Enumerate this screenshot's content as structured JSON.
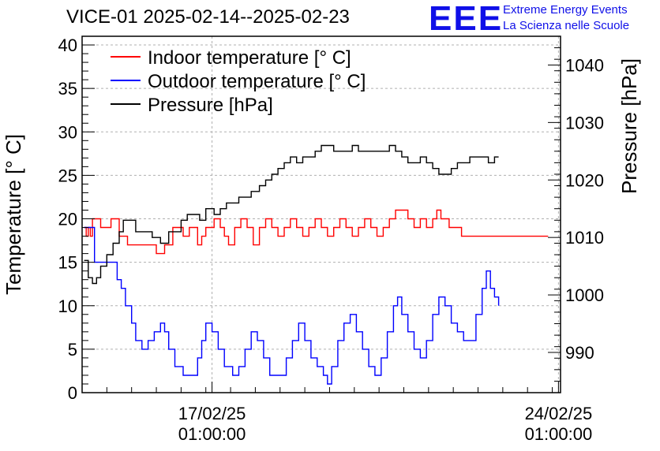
{
  "header": {
    "title": "VICE-01 2025-02-14--2025-02-23",
    "logo_text": "EEE",
    "logo_line1": "Extreme Energy Events",
    "logo_line2": "La Scienza nelle Scuole"
  },
  "chart_data": {
    "type": "line",
    "title": "VICE-01 2025-02-14--2025-02-23",
    "ylabel": "Temperature [° C]",
    "y2label": "Pressure [hPa]",
    "xlabel": "",
    "ylim": [
      0,
      41
    ],
    "y2lim": [
      983,
      1045
    ],
    "xlim": [
      "2025-02-14T10:00",
      "2025-02-24T02:00"
    ],
    "y_ticks": [
      0,
      5,
      10,
      15,
      20,
      25,
      30,
      35,
      40
    ],
    "y2_ticks": [
      990,
      1000,
      1010,
      1020,
      1030,
      1040
    ],
    "x_ticks": [
      {
        "x": "2025-02-17T01:00",
        "label_date": "17/02/25",
        "label_time": "01:00:00"
      },
      {
        "x": "2025-02-24T01:00",
        "label_date": "24/02/25",
        "label_time": "01:00:00"
      }
    ],
    "grid": true,
    "legend_position": "top-left",
    "series": [
      {
        "name": "Indoor temperature [° C]",
        "axis": "left",
        "color": "#ff0000",
        "points": [
          [
            "2025-02-14T11:00",
            19
          ],
          [
            "2025-02-14T12:00",
            18
          ],
          [
            "2025-02-14T13:00",
            19
          ],
          [
            "2025-02-14T14:00",
            18
          ],
          [
            "2025-02-14T15:00",
            20
          ],
          [
            "2025-02-14T19:00",
            19
          ],
          [
            "2025-02-15T00:00",
            20
          ],
          [
            "2025-02-15T04:00",
            18
          ],
          [
            "2025-02-15T08:00",
            17
          ],
          [
            "2025-02-15T18:00",
            17
          ],
          [
            "2025-02-15T22:00",
            16
          ],
          [
            "2025-02-16T02:00",
            17
          ],
          [
            "2025-02-16T06:00",
            19
          ],
          [
            "2025-02-16T11:00",
            18
          ],
          [
            "2025-02-16T14:00",
            19
          ],
          [
            "2025-02-16T18:00",
            17
          ],
          [
            "2025-02-16T20:00",
            18
          ],
          [
            "2025-02-16T22:00",
            19
          ],
          [
            "2025-02-17T02:00",
            20
          ],
          [
            "2025-02-17T05:00",
            19
          ],
          [
            "2025-02-17T07:00",
            18
          ],
          [
            "2025-02-17T09:00",
            17
          ],
          [
            "2025-02-17T12:00",
            19
          ],
          [
            "2025-02-17T15:00",
            20
          ],
          [
            "2025-02-17T18:00",
            19
          ],
          [
            "2025-02-17T21:00",
            17
          ],
          [
            "2025-02-18T00:00",
            19
          ],
          [
            "2025-02-18T03:00",
            20
          ],
          [
            "2025-02-18T06:00",
            19
          ],
          [
            "2025-02-18T09:00",
            18
          ],
          [
            "2025-02-18T12:00",
            19
          ],
          [
            "2025-02-18T15:00",
            20
          ],
          [
            "2025-02-18T18:00",
            19
          ],
          [
            "2025-02-18T21:00",
            18
          ],
          [
            "2025-02-19T00:00",
            19
          ],
          [
            "2025-02-19T03:00",
            20
          ],
          [
            "2025-02-19T06:00",
            19
          ],
          [
            "2025-02-19T09:00",
            18
          ],
          [
            "2025-02-19T12:00",
            19
          ],
          [
            "2025-02-19T15:00",
            20
          ],
          [
            "2025-02-19T18:00",
            19
          ],
          [
            "2025-02-19T21:00",
            18
          ],
          [
            "2025-02-20T00:00",
            19
          ],
          [
            "2025-02-20T03:00",
            20
          ],
          [
            "2025-02-20T06:00",
            19
          ],
          [
            "2025-02-20T09:00",
            18
          ],
          [
            "2025-02-20T12:00",
            19
          ],
          [
            "2025-02-20T15:00",
            20
          ],
          [
            "2025-02-20T18:00",
            21
          ],
          [
            "2025-02-21T00:00",
            20
          ],
          [
            "2025-02-21T03:00",
            19
          ],
          [
            "2025-02-21T06:00",
            20
          ],
          [
            "2025-02-21T09:00",
            19
          ],
          [
            "2025-02-21T12:00",
            20
          ],
          [
            "2025-02-21T14:00",
            21
          ],
          [
            "2025-02-21T16:00",
            20
          ],
          [
            "2025-02-21T20:00",
            19
          ],
          [
            "2025-02-22T02:00",
            18
          ],
          [
            "2025-02-23T20:00",
            18
          ]
        ]
      },
      {
        "name": "Outdoor temperature [° C]",
        "axis": "left",
        "color": "#0000ff",
        "points": [
          [
            "2025-02-14T11:00",
            19
          ],
          [
            "2025-02-14T15:00",
            19
          ],
          [
            "2025-02-14T16:00",
            15
          ],
          [
            "2025-02-15T01:00",
            15
          ],
          [
            "2025-02-15T03:00",
            13
          ],
          [
            "2025-02-15T05:00",
            12
          ],
          [
            "2025-02-15T07:00",
            10
          ],
          [
            "2025-02-15T10:00",
            8
          ],
          [
            "2025-02-15T12:00",
            6
          ],
          [
            "2025-02-15T15:00",
            5
          ],
          [
            "2025-02-15T18:00",
            6
          ],
          [
            "2025-02-15T21:00",
            7
          ],
          [
            "2025-02-16T00:00",
            8
          ],
          [
            "2025-02-16T02:00",
            7
          ],
          [
            "2025-02-16T04:00",
            5
          ],
          [
            "2025-02-16T07:00",
            3
          ],
          [
            "2025-02-16T11:00",
            2
          ],
          [
            "2025-02-16T15:00",
            2
          ],
          [
            "2025-02-16T18:00",
            4
          ],
          [
            "2025-02-16T20:00",
            6
          ],
          [
            "2025-02-16T22:00",
            8
          ],
          [
            "2025-02-17T01:00",
            7
          ],
          [
            "2025-02-17T04:00",
            5
          ],
          [
            "2025-02-17T07:00",
            3
          ],
          [
            "2025-02-17T11:00",
            2
          ],
          [
            "2025-02-17T14:00",
            3
          ],
          [
            "2025-02-17T17:00",
            5
          ],
          [
            "2025-02-17T20:00",
            7
          ],
          [
            "2025-02-17T23:00",
            6
          ],
          [
            "2025-02-18T02:00",
            4
          ],
          [
            "2025-02-18T05:00",
            2
          ],
          [
            "2025-02-18T10:00",
            2
          ],
          [
            "2025-02-18T13:00",
            4
          ],
          [
            "2025-02-18T16:00",
            6
          ],
          [
            "2025-02-18T19:00",
            8
          ],
          [
            "2025-02-18T22:00",
            6
          ],
          [
            "2025-02-19T01:00",
            4
          ],
          [
            "2025-02-19T04:00",
            3
          ],
          [
            "2025-02-19T07:00",
            2
          ],
          [
            "2025-02-19T09:00",
            1
          ],
          [
            "2025-02-19T11:00",
            3
          ],
          [
            "2025-02-19T14:00",
            6
          ],
          [
            "2025-02-19T17:00",
            8
          ],
          [
            "2025-02-19T20:00",
            9
          ],
          [
            "2025-02-19T23:00",
            7
          ],
          [
            "2025-02-20T02:00",
            5
          ],
          [
            "2025-02-20T05:00",
            3
          ],
          [
            "2025-02-20T08:00",
            2
          ],
          [
            "2025-02-20T11:00",
            4
          ],
          [
            "2025-02-20T14:00",
            7
          ],
          [
            "2025-02-20T17:00",
            10
          ],
          [
            "2025-02-20T19:00",
            11
          ],
          [
            "2025-02-20T21:00",
            9
          ],
          [
            "2025-02-21T00:00",
            7
          ],
          [
            "2025-02-21T03:00",
            5
          ],
          [
            "2025-02-21T06:00",
            4
          ],
          [
            "2025-02-21T09:00",
            6
          ],
          [
            "2025-02-21T12:00",
            9
          ],
          [
            "2025-02-21T15:00",
            11
          ],
          [
            "2025-02-21T18:00",
            10
          ],
          [
            "2025-02-21T21:00",
            8
          ],
          [
            "2025-02-22T00:00",
            7
          ],
          [
            "2025-02-22T03:00",
            6
          ],
          [
            "2025-02-22T06:00",
            6
          ],
          [
            "2025-02-22T09:00",
            9
          ],
          [
            "2025-02-22T12:00",
            12
          ],
          [
            "2025-02-22T14:00",
            14
          ],
          [
            "2025-02-22T16:00",
            12
          ],
          [
            "2025-02-22T18:00",
            11
          ],
          [
            "2025-02-22T20:00",
            10
          ]
        ]
      },
      {
        "name": "Pressure [hPa]",
        "axis": "right",
        "color": "#000000",
        "points": [
          [
            "2025-02-14T11:00",
            1006
          ],
          [
            "2025-02-14T13:00",
            1003
          ],
          [
            "2025-02-14T15:00",
            1002
          ],
          [
            "2025-02-14T17:00",
            1003
          ],
          [
            "2025-02-14T19:00",
            1005
          ],
          [
            "2025-02-14T22:00",
            1007
          ],
          [
            "2025-02-15T01:00",
            1009
          ],
          [
            "2025-02-15T04:00",
            1011
          ],
          [
            "2025-02-15T06:00",
            1013
          ],
          [
            "2025-02-15T09:00",
            1013
          ],
          [
            "2025-02-15T12:00",
            1011
          ],
          [
            "2025-02-15T16:00",
            1011
          ],
          [
            "2025-02-15T20:00",
            1010
          ],
          [
            "2025-02-16T00:00",
            1009
          ],
          [
            "2025-02-16T04:00",
            1011
          ],
          [
            "2025-02-16T07:00",
            1011
          ],
          [
            "2025-02-16T10:00",
            1013
          ],
          [
            "2025-02-16T13:00",
            1014
          ],
          [
            "2025-02-16T16:00",
            1014
          ],
          [
            "2025-02-16T19:00",
            1013
          ],
          [
            "2025-02-16T22:00",
            1015
          ],
          [
            "2025-02-17T02:00",
            1014
          ],
          [
            "2025-02-17T05:00",
            1015
          ],
          [
            "2025-02-17T08:00",
            1016
          ],
          [
            "2025-02-17T11:00",
            1016
          ],
          [
            "2025-02-17T14:00",
            1017
          ],
          [
            "2025-02-17T17:00",
            1017
          ],
          [
            "2025-02-17T20:00",
            1018
          ],
          [
            "2025-02-18T00:00",
            1019
          ],
          [
            "2025-02-18T03:00",
            1020
          ],
          [
            "2025-02-18T06:00",
            1021
          ],
          [
            "2025-02-18T09:00",
            1022
          ],
          [
            "2025-02-18T12:00",
            1023
          ],
          [
            "2025-02-18T15:00",
            1024
          ],
          [
            "2025-02-18T18:00",
            1023
          ],
          [
            "2025-02-18T21:00",
            1024
          ],
          [
            "2025-02-19T00:00",
            1024
          ],
          [
            "2025-02-19T03:00",
            1025
          ],
          [
            "2025-02-19T06:00",
            1026
          ],
          [
            "2025-02-19T09:00",
            1026
          ],
          [
            "2025-02-19T12:00",
            1025
          ],
          [
            "2025-02-19T15:00",
            1025
          ],
          [
            "2025-02-19T18:00",
            1025
          ],
          [
            "2025-02-19T21:00",
            1026
          ],
          [
            "2025-02-20T00:00",
            1025
          ],
          [
            "2025-02-20T03:00",
            1025
          ],
          [
            "2025-02-20T06:00",
            1025
          ],
          [
            "2025-02-20T09:00",
            1025
          ],
          [
            "2025-02-20T12:00",
            1025
          ],
          [
            "2025-02-20T15:00",
            1026
          ],
          [
            "2025-02-20T18:00",
            1025
          ],
          [
            "2025-02-20T21:00",
            1024
          ],
          [
            "2025-02-21T00:00",
            1023
          ],
          [
            "2025-02-21T03:00",
            1023
          ],
          [
            "2025-02-21T06:00",
            1024
          ],
          [
            "2025-02-21T09:00",
            1023
          ],
          [
            "2025-02-21T12:00",
            1022
          ],
          [
            "2025-02-21T15:00",
            1021
          ],
          [
            "2025-02-21T18:00",
            1021
          ],
          [
            "2025-02-21T21:00",
            1022
          ],
          [
            "2025-02-22T00:00",
            1023
          ],
          [
            "2025-02-22T03:00",
            1023
          ],
          [
            "2025-02-22T06:00",
            1024
          ],
          [
            "2025-02-22T09:00",
            1024
          ],
          [
            "2025-02-22T12:00",
            1024
          ],
          [
            "2025-02-22T15:00",
            1023
          ],
          [
            "2025-02-22T18:00",
            1024
          ],
          [
            "2025-02-22T20:00",
            1024
          ]
        ]
      }
    ]
  }
}
